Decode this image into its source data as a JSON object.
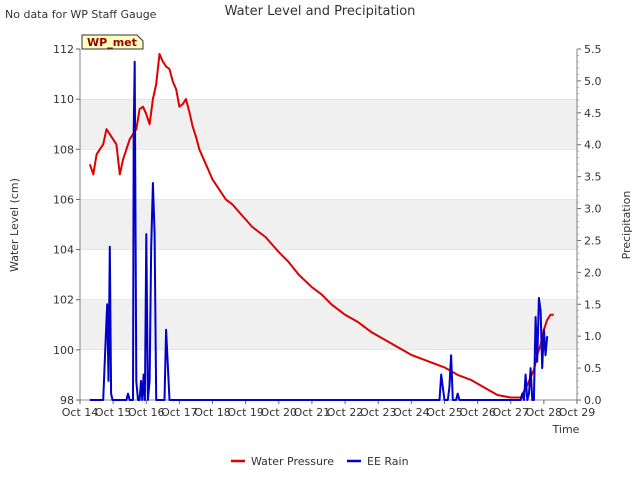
{
  "chart_data": {
    "type": "line",
    "title": "Water Level and Precipitation",
    "note": "No data for WP Staff Gauge",
    "badge": "WP_met",
    "xlabel": "Time",
    "ylabel_left": "Water Level (cm)",
    "ylabel_right": "Precipitation",
    "x_ticks": [
      "Oct 14",
      "Oct 15",
      "Oct 16",
      "Oct 17",
      "Oct 18",
      "Oct 19",
      "Oct 20",
      "Oct 21",
      "Oct 22",
      "Oct 23",
      "Oct 24",
      "Oct 25",
      "Oct 26",
      "Oct 27",
      "Oct 28",
      "Oct 29"
    ],
    "xlim_days": [
      14,
      29
    ],
    "y_left": {
      "lim": [
        98,
        112
      ],
      "ticks": [
        "98",
        "100",
        "102",
        "104",
        "106",
        "108",
        "110",
        "112"
      ]
    },
    "y_right": {
      "lim": [
        0,
        5.5
      ],
      "ticks": [
        "0.0",
        "0.5",
        "1.0",
        "1.5",
        "2.0",
        "2.5",
        "3.0",
        "3.5",
        "4.0",
        "4.5",
        "5.0",
        "5.5"
      ]
    },
    "grid": "horizontal bands",
    "legend": "bottom-center",
    "series": [
      {
        "name": "Water Pressure",
        "axis": "left",
        "color": "#dd0000",
        "x": [
          14.3,
          14.4,
          14.5,
          14.6,
          14.7,
          14.8,
          14.9,
          15.0,
          15.1,
          15.2,
          15.3,
          15.4,
          15.5,
          15.6,
          15.7,
          15.8,
          15.9,
          16.0,
          16.1,
          16.2,
          16.3,
          16.4,
          16.5,
          16.6,
          16.7,
          16.8,
          16.9,
          17.0,
          17.1,
          17.2,
          17.3,
          17.4,
          17.5,
          17.6,
          17.7,
          17.8,
          17.9,
          18.0,
          18.2,
          18.4,
          18.6,
          18.8,
          19.0,
          19.2,
          19.4,
          19.6,
          19.8,
          20.0,
          20.3,
          20.6,
          21.0,
          21.3,
          21.6,
          22.0,
          22.4,
          22.8,
          23.2,
          23.6,
          24.0,
          24.4,
          24.8,
          25.0,
          25.4,
          25.8,
          26.2,
          26.6,
          27.0,
          27.3,
          27.5,
          27.7,
          27.8,
          27.9,
          28.0,
          28.1,
          28.2,
          28.3
        ],
        "values": [
          107.4,
          107.0,
          107.8,
          108.0,
          108.2,
          108.8,
          108.6,
          108.4,
          108.2,
          107.0,
          107.6,
          108.0,
          108.4,
          108.6,
          108.8,
          109.6,
          109.7,
          109.4,
          109.0,
          110.0,
          110.6,
          111.8,
          111.5,
          111.3,
          111.2,
          110.7,
          110.4,
          109.7,
          109.8,
          110.0,
          109.5,
          108.9,
          108.5,
          108.0,
          107.7,
          107.4,
          107.1,
          106.8,
          106.4,
          106.0,
          105.8,
          105.5,
          105.2,
          104.9,
          104.7,
          104.5,
          104.2,
          103.9,
          103.5,
          103.0,
          102.5,
          102.2,
          101.8,
          101.4,
          101.1,
          100.7,
          100.4,
          100.1,
          99.8,
          99.6,
          99.4,
          99.3,
          99.0,
          98.8,
          98.5,
          98.2,
          98.1,
          98.1,
          98.6,
          99.2,
          99.8,
          100.2,
          100.8,
          101.2,
          101.4,
          101.4
        ]
      },
      {
        "name": "EE Rain",
        "axis": "right",
        "color": "#0000cc",
        "x": [
          14.3,
          14.7,
          14.78,
          14.82,
          14.86,
          14.9,
          14.94,
          14.98,
          15.05,
          15.4,
          15.45,
          15.5,
          15.55,
          15.6,
          15.62,
          15.65,
          15.7,
          15.75,
          15.8,
          15.84,
          15.88,
          15.92,
          15.96,
          16.0,
          16.05,
          16.1,
          16.15,
          16.2,
          16.25,
          16.3,
          16.35,
          16.4,
          16.45,
          16.5,
          16.55,
          16.6,
          16.7,
          16.75,
          16.8,
          24.85,
          24.9,
          24.95,
          25.0,
          25.05,
          25.1,
          25.15,
          25.2,
          25.25,
          25.3,
          25.35,
          25.4,
          25.45,
          25.5,
          27.2,
          27.3,
          27.35,
          27.4,
          27.45,
          27.5,
          27.55,
          27.6,
          27.65,
          27.7,
          27.75,
          27.8,
          27.85,
          27.9,
          27.95,
          28.0,
          28.05,
          28.1
        ],
        "values": [
          0.0,
          0.0,
          1.0,
          1.5,
          0.3,
          2.4,
          0.1,
          0.0,
          0.0,
          0.0,
          0.1,
          0.0,
          0.0,
          0.0,
          4.2,
          5.3,
          0.3,
          0.0,
          0.0,
          0.3,
          0.0,
          0.4,
          0.0,
          2.6,
          0.0,
          0.3,
          2.4,
          3.4,
          2.6,
          0.0,
          0.0,
          0.0,
          0.0,
          0.0,
          0.0,
          1.1,
          0.0,
          0.0,
          0.0,
          0.0,
          0.4,
          0.2,
          0.0,
          0.0,
          0.0,
          0.2,
          0.7,
          0.0,
          0.0,
          0.0,
          0.1,
          0.0,
          0.0,
          0.0,
          0.0,
          0.1,
          0.0,
          0.4,
          0.0,
          0.1,
          0.5,
          0.0,
          0.0,
          1.3,
          0.6,
          1.6,
          1.4,
          0.5,
          1.1,
          0.7,
          1.0
        ]
      }
    ]
  }
}
